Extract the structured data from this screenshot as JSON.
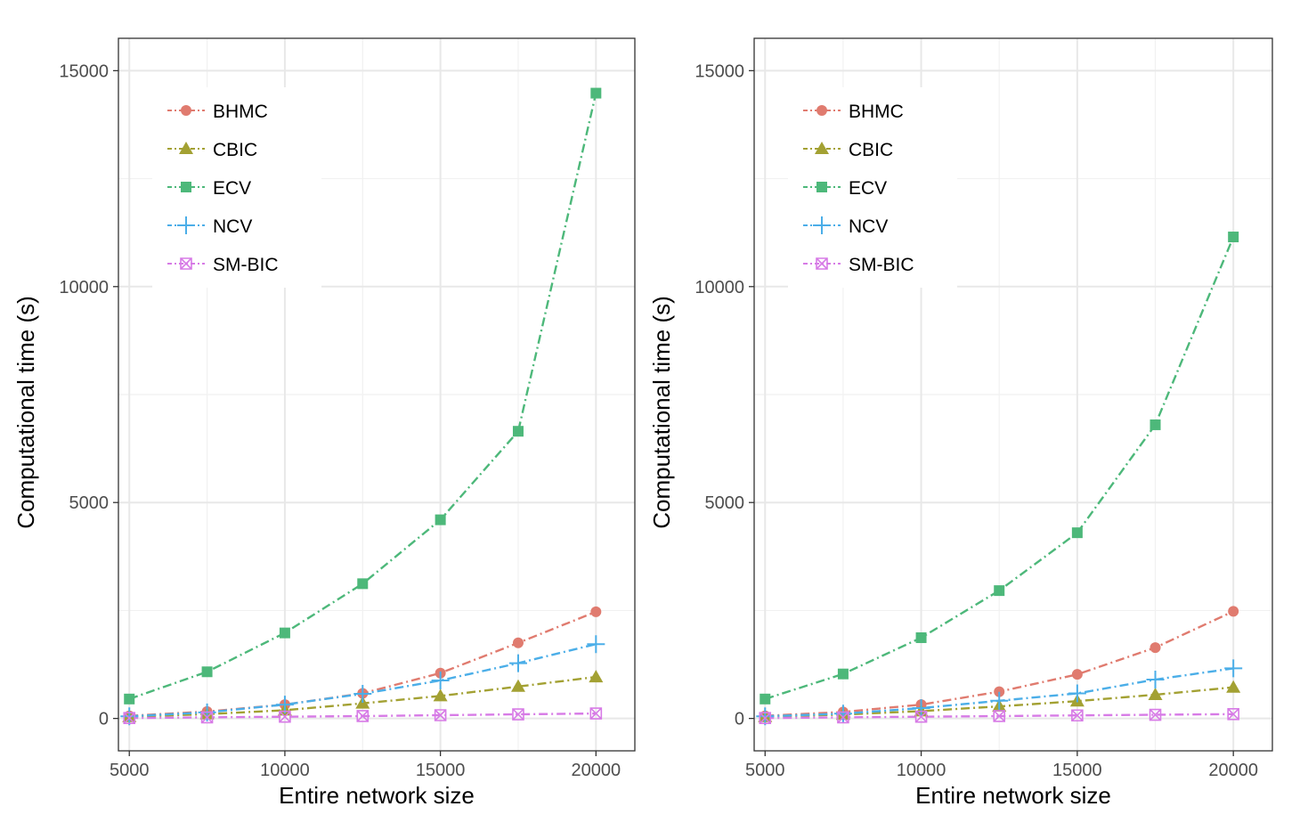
{
  "chart_data": [
    {
      "type": "line",
      "xlabel": "Entire network size",
      "ylabel": "Computational time (s)",
      "x": [
        5000,
        7500,
        10000,
        12500,
        15000,
        17500,
        20000
      ],
      "xticks": [
        5000,
        10000,
        15000,
        20000
      ],
      "xtick_labels": [
        "5000",
        "10000",
        "15000",
        "20000"
      ],
      "yticks": [
        0,
        5000,
        10000,
        15000
      ],
      "ytick_labels": [
        "0",
        "5000",
        "10000",
        "15000"
      ],
      "xlim": [
        4650,
        21250
      ],
      "ylim": [
        -750,
        15750
      ],
      "grid": true,
      "legend_position": "top-left",
      "series": [
        {
          "name": "BHMC",
          "color": "#E07B6F",
          "marker": "circle",
          "values": [
            60,
            160,
            320,
            580,
            1050,
            1750,
            2470
          ]
        },
        {
          "name": "CBIC",
          "color": "#A3A133",
          "marker": "triangle",
          "values": [
            40,
            100,
            190,
            350,
            520,
            740,
            960
          ]
        },
        {
          "name": "ECV",
          "color": "#4DB87A",
          "marker": "square",
          "values": [
            450,
            1080,
            1980,
            3120,
            4600,
            6650,
            14480
          ]
        },
        {
          "name": "NCV",
          "color": "#4BAEE8",
          "marker": "plus",
          "values": [
            50,
            140,
            320,
            570,
            880,
            1280,
            1720
          ]
        },
        {
          "name": "SM-BIC",
          "color": "#D77BE6",
          "marker": "boxcross",
          "values": [
            10,
            25,
            40,
            55,
            75,
            95,
            115
          ]
        }
      ]
    },
    {
      "type": "line",
      "xlabel": "Entire network size",
      "ylabel": "Computational time (s)",
      "x": [
        5000,
        7500,
        10000,
        12500,
        15000,
        17500,
        20000
      ],
      "xticks": [
        5000,
        10000,
        15000,
        20000
      ],
      "xtick_labels": [
        "5000",
        "10000",
        "15000",
        "20000"
      ],
      "yticks": [
        0,
        5000,
        10000,
        15000
      ],
      "ytick_labels": [
        "0",
        "5000",
        "10000",
        "15000"
      ],
      "xlim": [
        4650,
        21250
      ],
      "ylim": [
        -750,
        15750
      ],
      "grid": true,
      "legend_position": "top-left",
      "series": [
        {
          "name": "BHMC",
          "color": "#E07B6F",
          "marker": "circle",
          "values": [
            60,
            150,
            320,
            620,
            1020,
            1640,
            2480
          ]
        },
        {
          "name": "CBIC",
          "color": "#A3A133",
          "marker": "triangle",
          "values": [
            40,
            90,
            170,
            280,
            400,
            550,
            720
          ]
        },
        {
          "name": "ECV",
          "color": "#4DB87A",
          "marker": "square",
          "values": [
            450,
            1030,
            1870,
            2960,
            4300,
            6800,
            11150
          ]
        },
        {
          "name": "NCV",
          "color": "#4BAEE8",
          "marker": "plus",
          "values": [
            50,
            110,
            240,
            410,
            580,
            900,
            1160
          ]
        },
        {
          "name": "SM-BIC",
          "color": "#D77BE6",
          "marker": "boxcross",
          "values": [
            10,
            25,
            40,
            55,
            70,
            85,
            100
          ]
        }
      ]
    }
  ]
}
